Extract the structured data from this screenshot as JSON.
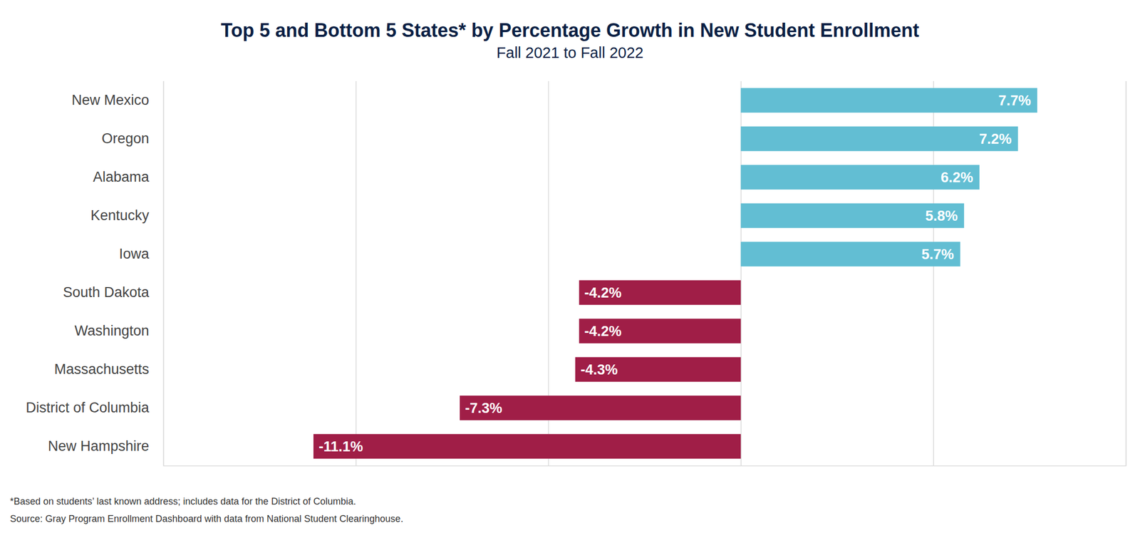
{
  "chart_data": {
    "type": "bar",
    "orientation": "horizontal",
    "title": "Top 5 and Bottom 5 States* by Percentage Growth in New Student Enrollment",
    "subtitle": "Fall 2021 to Fall 2022",
    "categories": [
      "New Mexico",
      "Oregon",
      "Alabama",
      "Kentucky",
      "Iowa",
      "South Dakota",
      "Washington",
      "Massachusetts",
      "District of Columbia",
      "New Hampshire"
    ],
    "values": [
      7.7,
      7.2,
      6.2,
      5.8,
      5.7,
      -4.2,
      -4.2,
      -4.3,
      -7.3,
      -11.1
    ],
    "value_labels": [
      "7.7%",
      "7.2%",
      "6.2%",
      "5.8%",
      "5.7%",
      "-4.2%",
      "-4.2%",
      "-4.3%",
      "-7.3%",
      "-11.1%"
    ],
    "colors": [
      "#62bed3",
      "#62bed3",
      "#62bed3",
      "#62bed3",
      "#62bed3",
      "#a01e47",
      "#a01e47",
      "#a01e47",
      "#a01e47",
      "#a01e47"
    ],
    "xlim": [
      -15,
      10
    ],
    "xticks": [
      -15,
      -10,
      -5,
      0,
      5,
      10
    ],
    "grid": true,
    "data_labels": true,
    "tick_labels": "y",
    "annotations": [
      "*Based on students’ last known address; includes data for the District of Columbia.",
      "Source: Gray Program Enrollment Dashboard with data from National Student Clearinghouse."
    ]
  }
}
